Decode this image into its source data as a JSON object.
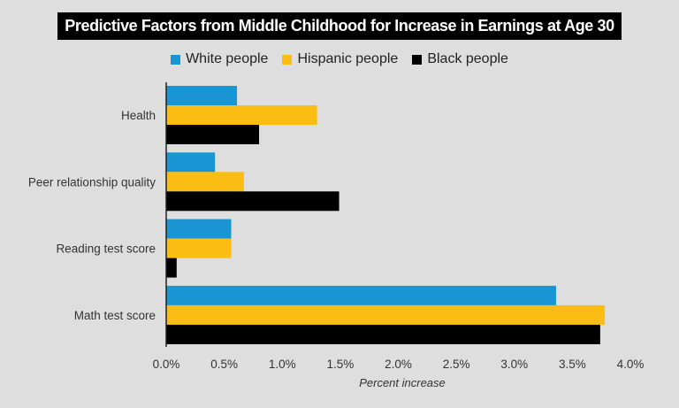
{
  "chart_data": {
    "type": "bar",
    "orientation": "horizontal",
    "title": "Predictive Factors from Middle Childhood for Increase in Earnings at Age 30",
    "categories": [
      "Health",
      "Peer relationship quality",
      "Reading test score",
      "Math test score"
    ],
    "series": [
      {
        "name": "White people",
        "color": "#1a95d3",
        "values": [
          0.61,
          0.42,
          0.56,
          3.36
        ]
      },
      {
        "name": "Hispanic people",
        "color": "#fbbd13",
        "values": [
          1.3,
          0.67,
          0.56,
          3.78
        ]
      },
      {
        "name": "Black people",
        "color": "#000000",
        "values": [
          0.8,
          1.49,
          0.09,
          3.74
        ]
      }
    ],
    "xlabel": "Percent increase",
    "ylabel": "",
    "xlim": [
      0,
      4.0
    ],
    "xticks": [
      "0.0%",
      "0.5%",
      "1.0%",
      "1.5%",
      "2.0%",
      "2.5%",
      "3.0%",
      "3.5%",
      "4.0%"
    ],
    "legend": "top-center",
    "grid": false
  }
}
